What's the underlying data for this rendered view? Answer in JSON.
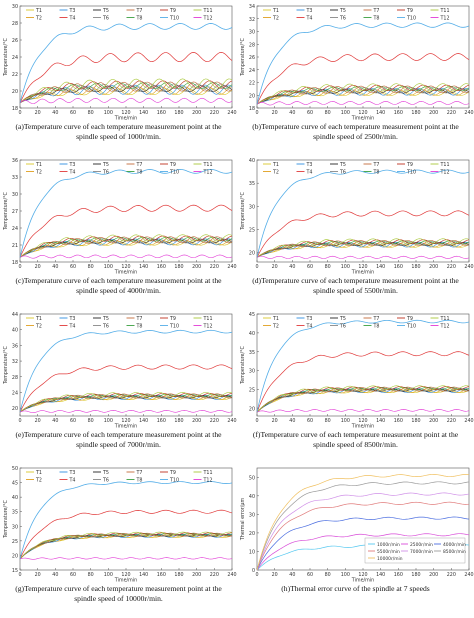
{
  "colors": {
    "T1": "#d8c82a",
    "T2": "#e0a020",
    "T3": "#2e8fe0",
    "T4": "#e03a3a",
    "T5": "#222222",
    "T6": "#888888",
    "T7": "#c26a3a",
    "T8": "#3aa040",
    "T9": "#c0301e",
    "T10": "#55aee8",
    "T11": "#a9c93a",
    "T12": "#e23bd6",
    "S1000": "#55c8f0",
    "S2500": "#d84bd8",
    "S4000": "#4a6de0",
    "S5500": "#e07a7a",
    "S7000": "#d090e8",
    "S8500": "#9a9a9a",
    "S10000": "#f0c060"
  },
  "chart_data": [
    {
      "type": "line",
      "caption_line1": "(a)Temperature curve of each temperature measurement point at the",
      "caption_line2": "spindle speed of 1000r/min.",
      "xlabel": "Time/min",
      "ylabel": "Temperature/°C",
      "xlim": [
        0,
        240
      ],
      "ylim": [
        18,
        30
      ],
      "xticks": [
        "0",
        "20",
        "40",
        "60",
        "80",
        "100",
        "120",
        "140",
        "160",
        "180",
        "200",
        "220",
        "240"
      ],
      "yticks": [
        "18",
        "20",
        "22",
        "24",
        "26",
        "28",
        "30"
      ],
      "legend_labels": [
        "T1",
        "T3",
        "T5",
        "T7",
        "T9",
        "T11",
        "T2",
        "T4",
        "T6",
        "T8",
        "T10",
        "T12"
      ],
      "plateaus": {
        "T10": 27.6,
        "T4": 24.0,
        "group": 20.4,
        "T12": 18.9
      },
      "start": 18.6
    },
    {
      "type": "line",
      "caption_line1": "(b)Temperature curve of each temperature measurement point at the",
      "caption_line2": "spindle speed of 2500r/min.",
      "xlabel": "Time/min",
      "ylabel": "Temperature/°C",
      "xlim": [
        0,
        240
      ],
      "ylim": [
        18,
        34
      ],
      "xticks": [
        "0",
        "20",
        "40",
        "60",
        "80",
        "100",
        "120",
        "140",
        "160",
        "180",
        "200",
        "220",
        "240"
      ],
      "yticks": [
        "18",
        "20",
        "22",
        "24",
        "26",
        "28",
        "30",
        "32",
        "34"
      ],
      "legend_labels": [
        "T1",
        "T3",
        "T5",
        "T7",
        "T9",
        "T11",
        "T2",
        "T4",
        "T6",
        "T8",
        "T10",
        "T12"
      ],
      "plateaus": {
        "T10": 31.0,
        "T4": 26.0,
        "group": 20.8,
        "T12": 18.8
      },
      "start": 18.6
    },
    {
      "type": "line",
      "caption_line1": "(c)Temperature curve of each temperature measurement point at the",
      "caption_line2": "spindle speed of 4000r/min.",
      "xlabel": "Time/min",
      "ylabel": "Temperature/°C",
      "xlim": [
        0,
        240
      ],
      "ylim": [
        18,
        36
      ],
      "xticks": [
        "0",
        "20",
        "40",
        "60",
        "80",
        "100",
        "120",
        "140",
        "160",
        "180",
        "200",
        "220",
        "240"
      ],
      "yticks": [
        "18",
        "21",
        "24",
        "27",
        "30",
        "33",
        "36"
      ],
      "legend_labels": [
        "T1",
        "T3",
        "T5",
        "T7",
        "T9",
        "T11",
        "T2",
        "T4",
        "T6",
        "T8",
        "T10",
        "T12"
      ],
      "plateaus": {
        "T10": 34.0,
        "T4": 27.5,
        "group": 21.8,
        "T12": 19.0
      },
      "start": 18.8
    },
    {
      "type": "line",
      "caption_line1": "(d)Temperature curve of each temperature measurement point at the",
      "caption_line2": "spindle speed of 5500r/min.",
      "xlabel": "Time/min",
      "ylabel": "Temperature/°C",
      "xlim": [
        0,
        240
      ],
      "ylim": [
        18,
        40
      ],
      "xticks": [
        "0",
        "20",
        "40",
        "60",
        "80",
        "100",
        "120",
        "140",
        "160",
        "180",
        "200",
        "220",
        "240"
      ],
      "yticks": [
        "20",
        "25",
        "30",
        "35",
        "40"
      ],
      "legend_labels": [
        "T1",
        "T3",
        "T5",
        "T7",
        "T9",
        "T11",
        "T2",
        "T4",
        "T6",
        "T8",
        "T10",
        "T12"
      ],
      "plateaus": {
        "T10": 37.5,
        "T4": 28.5,
        "group": 22.0,
        "T12": 19.0
      },
      "start": 19.0
    },
    {
      "type": "line",
      "caption_line1": "(e)Temperature curve of each temperature measurement point at the",
      "caption_line2": "spindle speed of 7000r/min.",
      "xlabel": "Time/min",
      "ylabel": "Temperature/°C",
      "xlim": [
        0,
        240
      ],
      "ylim": [
        18,
        44
      ],
      "xticks": [
        "0",
        "20",
        "40",
        "60",
        "80",
        "100",
        "120",
        "140",
        "160",
        "180",
        "200",
        "220",
        "240"
      ],
      "yticks": [
        "20",
        "24",
        "28",
        "32",
        "36",
        "40",
        "44"
      ],
      "legend_labels": [
        "T1",
        "T3",
        "T5",
        "T7",
        "T9",
        "T11",
        "T2",
        "T4",
        "T6",
        "T8",
        "T10",
        "T12"
      ],
      "plateaus": {
        "T10": 39.5,
        "T4": 30.5,
        "group": 23.0,
        "T12": 19.2
      },
      "start": 19.0
    },
    {
      "type": "line",
      "caption_line1": "(f)Temperature curve of each temperature measurement point at the",
      "caption_line2": "spindle speed of 8500r/min.",
      "xlabel": "Time/min",
      "ylabel": "Temperature/°C",
      "xlim": [
        0,
        240
      ],
      "ylim": [
        18,
        45
      ],
      "xticks": [
        "0",
        "20",
        "40",
        "60",
        "80",
        "100",
        "120",
        "140",
        "160",
        "180",
        "200",
        "220",
        "240"
      ],
      "yticks": [
        "20",
        "25",
        "30",
        "35",
        "40",
        "45"
      ],
      "legend_labels": [
        "T1",
        "T3",
        "T5",
        "T7",
        "T9",
        "T11",
        "T2",
        "T4",
        "T6",
        "T8",
        "T10",
        "T12"
      ],
      "plateaus": {
        "T10": 43.0,
        "T4": 34.5,
        "group": 25.0,
        "T12": 19.5
      },
      "start": 19.0
    },
    {
      "type": "line",
      "caption_line1": "(g)Temperature curve of each temperature measurement point at the",
      "caption_line2": "spindle speed of 10000r/min.",
      "xlabel": "Time/min",
      "ylabel": "Temperature/°C",
      "xlim": [
        0,
        240
      ],
      "ylim": [
        15,
        50
      ],
      "xticks": [
        "0",
        "20",
        "40",
        "60",
        "80",
        "100",
        "120",
        "140",
        "160",
        "180",
        "200",
        "220",
        "240"
      ],
      "yticks": [
        "15",
        "20",
        "25",
        "30",
        "35",
        "40",
        "45",
        "50"
      ],
      "legend_labels": [
        "T1",
        "T3",
        "T5",
        "T7",
        "T9",
        "T11",
        "T2",
        "T4",
        "T6",
        "T8",
        "T10",
        "T12"
      ],
      "plateaus": {
        "T10": 45.0,
        "T4": 35.0,
        "group": 27.0,
        "T12": 19.0
      },
      "start": 18.8
    },
    {
      "type": "line",
      "caption_line1": "(h)Thermal error curve of the spindle at 7 speeds",
      "caption_line2": "",
      "xlabel": "Time/min",
      "ylabel": "Thermal error/μm",
      "xlim": [
        0,
        240
      ],
      "ylim": [
        0,
        55
      ],
      "xticks": [
        "0",
        "20",
        "40",
        "60",
        "80",
        "100",
        "120",
        "140",
        "160",
        "180",
        "200",
        "220",
        "240"
      ],
      "yticks": [
        "0",
        "10",
        "20",
        "30",
        "40",
        "50"
      ],
      "legend_labels": [
        "1000r/min",
        "2500r/min",
        "4000r/min",
        "5500r/min",
        "7000r/min",
        "8500r/min",
        "10000r/min"
      ],
      "series_plateaus": [
        13,
        19,
        28,
        36,
        41,
        47,
        51
      ]
    }
  ]
}
